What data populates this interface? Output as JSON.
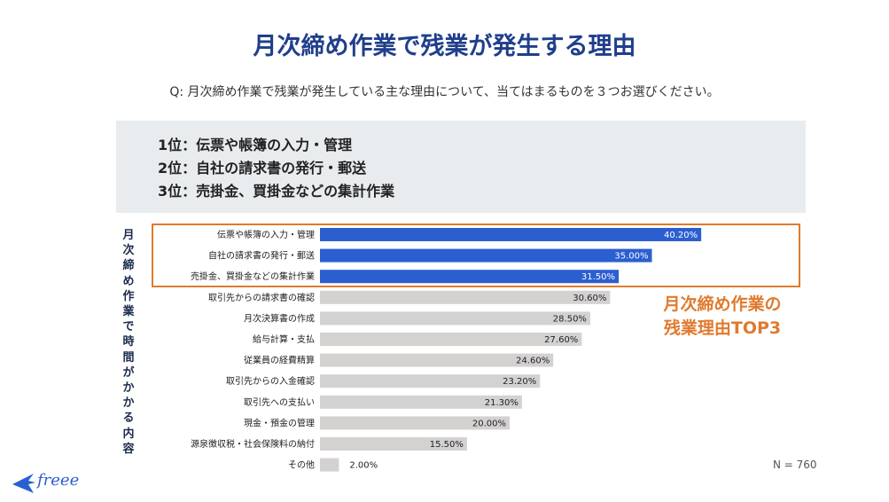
{
  "header": {
    "title": "月次締め作業で残業が発生する理由",
    "question": "Q: 月次締め作業で残業が発生している主な理由について、当てはまるものを３つお選びください。"
  },
  "summary": {
    "rank1": "1位：伝票や帳簿の入力・管理",
    "rank2": "2位：自社の請求書の発行・郵送",
    "rank3": "3位：売掛金、買掛金などの集計作業"
  },
  "y_axis_title": "月次締め作業で時間がかかる内容",
  "annotation": {
    "line1": "月次締め作業の",
    "line2": "残業理由TOP3"
  },
  "sample_size": "N = 760",
  "logo": {
    "text": "freee"
  },
  "colors": {
    "highlight": "#2b5fd0",
    "normal": "#d4d1d1",
    "accent": "#e07a2e",
    "title": "#1f3e8c"
  },
  "chart_data": {
    "type": "bar",
    "orientation": "horizontal",
    "title": "月次締め作業で残業が発生する理由",
    "ylabel": "月次締め作業で時間がかかる内容",
    "xlim": [
      0,
      100
    ],
    "highlight_count": 3,
    "categories": [
      "伝票や帳簿の入力・管理",
      "自社の請求書の発行・郵送",
      "売掛金、買掛金などの集計作業",
      "取引先からの請求書の確認",
      "月次決算書の作成",
      "給与計算・支払",
      "従業員の経費精算",
      "取引先からの入金確認",
      "取引先への支払い",
      "現金・預金の管理",
      "源泉徴収税・社会保険料の納付",
      "その他"
    ],
    "values": [
      40.2,
      35.0,
      31.5,
      30.6,
      28.5,
      27.6,
      24.6,
      23.2,
      21.3,
      20.0,
      15.5,
      2.0
    ],
    "value_labels": [
      "40.20%",
      "35.00%",
      "31.50%",
      "30.60%",
      "28.50%",
      "27.60%",
      "24.60%",
      "23.20%",
      "21.30%",
      "20.00%",
      "15.50%",
      "2.00%"
    ]
  }
}
